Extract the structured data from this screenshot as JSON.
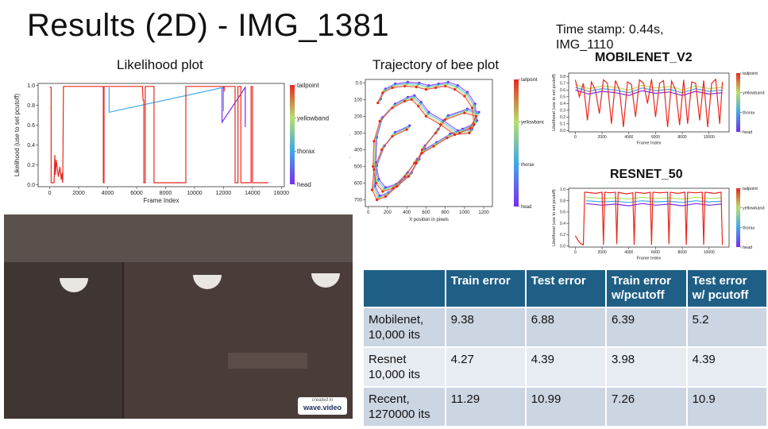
{
  "slide": {
    "title": "Results (2D) - IMG_1381",
    "timestamp_line1": "Time stamp: 0.44s,",
    "timestamp_line2": "IMG_1110",
    "watermark_small": "created in",
    "watermark_brand": "wave.video"
  },
  "colorbar_labels": [
    "tailpoint",
    "yellowband",
    "thorax",
    "head"
  ],
  "colors": {
    "tailpoint": "#e8281f",
    "yellowband": "#b5e06a",
    "thorax": "#3fa8e8",
    "head": "#7a2cf0",
    "table_header": "#1f5f86",
    "table_row_dark": "#ccd5e2",
    "table_row_light": "#e7ebf2"
  },
  "chart_data": [
    {
      "type": "line",
      "title": "Likelihood plot",
      "xlabel": "Frame Index",
      "ylabel": "Likelihood (use to set pcutoff)",
      "xlim": [
        -800,
        16200
      ],
      "ylim": [
        -0.02,
        1.02
      ],
      "xticks": [
        0,
        2000,
        4000,
        6000,
        8000,
        10000,
        12000,
        14000,
        16000
      ],
      "yticks": [
        0.0,
        0.2,
        0.4,
        0.6,
        0.8,
        1.0
      ],
      "series": [
        {
          "name": "tailpoint",
          "x": [
            0,
            100,
            100,
            300,
            350,
            400,
            450,
            600,
            700,
            800,
            850,
            900,
            950,
            3700,
            3700,
            3750,
            3750,
            6400,
            6450,
            6500,
            6500,
            6600,
            6600,
            7200,
            7200,
            7200,
            9400,
            9400,
            12000,
            12050,
            12050,
            12800,
            12800,
            13000,
            13000,
            13200,
            13200,
            13900,
            13900,
            14000,
            14000,
            15100
          ],
          "y": [
            0.98,
            0.98,
            0.02,
            0.02,
            0.3,
            0.1,
            0.25,
            0.08,
            0.18,
            0.05,
            0.12,
            0.02,
            0.99,
            0.99,
            0.02,
            0.02,
            0.99,
            0.99,
            0.85,
            0.85,
            0.02,
            0.02,
            0.99,
            0.99,
            0.02,
            0.02,
            0.02,
            0.99,
            0.99,
            0.94,
            0.99,
            0.99,
            0.02,
            0.02,
            0.99,
            0.99,
            0.02,
            0.02,
            0.99,
            0.99,
            0.02,
            0.02
          ]
        },
        {
          "name": "yellowband",
          "x": [
            0,
            100
          ],
          "y": [
            0.78,
            0.78
          ]
        },
        {
          "name": "thorax",
          "x": [
            4100,
            4100,
            12000,
            12000
          ],
          "y": [
            0.98,
            0.73,
            0.98,
            0.74
          ]
        },
        {
          "name": "head",
          "x": [
            11900,
            11900,
            13500,
            13500
          ],
          "y": [
            0.98,
            0.63,
            0.98,
            0.58
          ]
        }
      ]
    },
    {
      "type": "scatter",
      "title": "Trajectory of bee plot",
      "xlabel": "X position in pixels",
      "ylabel": "Y position in pixels",
      "xlim": [
        -30,
        1290
      ],
      "ylim": [
        740,
        -20
      ],
      "xticks": [
        0,
        200,
        400,
        600,
        800,
        1000,
        1200
      ],
      "yticks": [
        0,
        100,
        200,
        300,
        400,
        500,
        600,
        700
      ],
      "series": [
        {
          "name": "tailpoint",
          "x": [
            100,
            150,
            250,
            380,
            500,
            600,
            700,
            800,
            900,
            1000,
            1080,
            1100,
            1050,
            900,
            750,
            600,
            520,
            450,
            380,
            250,
            120,
            60,
            50,
            80,
            150,
            260,
            380,
            480,
            560,
            680,
            820,
            950,
            1060,
            1120,
            1000,
            800,
            700,
            560,
            500,
            420,
            300,
            180,
            90,
            40,
            60,
            140,
            250,
            400
          ],
          "y": [
            120,
            60,
            30,
            20,
            25,
            40,
            30,
            20,
            40,
            80,
            150,
            250,
            300,
            310,
            250,
            200,
            140,
            100,
            110,
            150,
            230,
            350,
            500,
            600,
            650,
            630,
            560,
            480,
            420,
            380,
            330,
            300,
            270,
            200,
            180,
            220,
            300,
            400,
            480,
            560,
            620,
            680,
            700,
            640,
            520,
            400,
            320,
            280
          ]
        },
        {
          "name": "yellowband",
          "x": [
            110,
            160,
            260,
            390,
            510,
            610,
            710,
            810,
            910,
            1010,
            1090,
            1110,
            1060,
            910,
            760,
            610,
            530,
            460,
            390,
            260,
            130,
            70,
            60,
            90,
            160,
            270,
            390,
            490,
            570,
            690,
            830,
            960,
            1070,
            1130,
            1010,
            810,
            710,
            570,
            510,
            430,
            310,
            190,
            100,
            50,
            70,
            150,
            260,
            410
          ],
          "y": [
            112,
            52,
            22,
            12,
            17,
            32,
            22,
            12,
            32,
            72,
            142,
            242,
            292,
            302,
            242,
            192,
            132,
            92,
            102,
            142,
            222,
            342,
            492,
            592,
            642,
            622,
            552,
            472,
            412,
            372,
            322,
            292,
            262,
            192,
            172,
            212,
            292,
            392,
            472,
            552,
            612,
            672,
            692,
            632,
            512,
            392,
            312,
            272
          ]
        },
        {
          "name": "thorax",
          "x": [
            120,
            170,
            270,
            400,
            520,
            620,
            720,
            820,
            920,
            1020,
            1100,
            1120,
            1070,
            920,
            770,
            620,
            540,
            470,
            400,
            270,
            140,
            80,
            70,
            100,
            170,
            280,
            400,
            500,
            580,
            700,
            840,
            970,
            1080,
            1140,
            1020,
            820,
            720,
            580,
            520,
            440,
            320,
            200,
            110,
            60,
            80,
            160,
            270,
            420
          ],
          "y": [
            104,
            44,
            14,
            4,
            9,
            24,
            14,
            4,
            24,
            64,
            134,
            234,
            284,
            294,
            234,
            184,
            124,
            84,
            94,
            134,
            214,
            334,
            484,
            584,
            634,
            614,
            544,
            464,
            404,
            364,
            314,
            284,
            254,
            184,
            164,
            204,
            284,
            384,
            464,
            544,
            604,
            664,
            684,
            624,
            504,
            384,
            304,
            264
          ]
        },
        {
          "name": "head",
          "x": [
            130,
            180,
            280,
            410,
            530,
            630,
            730,
            830,
            930,
            1030,
            1110,
            1130,
            1080,
            930,
            780,
            630,
            550,
            480,
            410,
            280,
            150,
            90,
            80,
            110,
            180,
            290,
            410,
            510,
            590,
            710,
            850,
            980,
            1090,
            1150,
            1030,
            830,
            730,
            590,
            530,
            450,
            330,
            210,
            120,
            70,
            90,
            170,
            280,
            430
          ],
          "y": [
            96,
            36,
            6,
            -4,
            1,
            16,
            6,
            -4,
            16,
            56,
            126,
            226,
            276,
            286,
            226,
            176,
            116,
            76,
            86,
            126,
            206,
            326,
            476,
            576,
            626,
            606,
            536,
            456,
            396,
            356,
            306,
            276,
            246,
            176,
            156,
            196,
            276,
            376,
            456,
            536,
            596,
            656,
            676,
            616,
            496,
            376,
            296,
            256
          ]
        }
      ]
    },
    {
      "type": "line",
      "title": "MOBILENET_V2",
      "xlabel": "Frame Index",
      "ylabel": "Likelihood (use to set pcutoff)",
      "xlim": [
        -500,
        11500
      ],
      "ylim": [
        -0.02,
        0.85
      ],
      "xticks": [
        0,
        2000,
        4000,
        6000,
        8000,
        10000
      ],
      "yticks": [
        0.0,
        0.1,
        0.2,
        0.3,
        0.4,
        0.5,
        0.6,
        0.7,
        0.8
      ],
      "series": [
        {
          "name": "tailpoint",
          "x": [
            0,
            300,
            600,
            900,
            1200,
            1500,
            1800,
            2100,
            2400,
            2700,
            3000,
            3300,
            3600,
            3900,
            4200,
            4500,
            4800,
            5100,
            5400,
            5700,
            6000,
            6300,
            6600,
            6900,
            7200,
            7500,
            7800,
            8100,
            8400,
            8700,
            9000,
            9300,
            9600,
            9900,
            10200,
            10500,
            10800,
            11000
          ],
          "y": [
            0.75,
            0.5,
            0.7,
            0.15,
            0.72,
            0.6,
            0.25,
            0.75,
            0.7,
            0.1,
            0.74,
            0.6,
            0.05,
            0.72,
            0.68,
            0.2,
            0.75,
            0.7,
            0.4,
            0.76,
            0.2,
            0.7,
            0.74,
            0.05,
            0.73,
            0.6,
            0.08,
            0.75,
            0.1,
            0.72,
            0.7,
            0.15,
            0.74,
            0.05,
            0.7,
            0.76,
            0.1,
            0.72
          ]
        },
        {
          "name": "yellowband",
          "x": [
            0,
            1000,
            2000,
            3000,
            4000,
            5000,
            6000,
            7000,
            8000,
            9000,
            10000,
            11000
          ],
          "y": [
            0.68,
            0.62,
            0.66,
            0.64,
            0.6,
            0.67,
            0.63,
            0.65,
            0.6,
            0.66,
            0.62,
            0.64
          ]
        },
        {
          "name": "thorax",
          "x": [
            0,
            1000,
            2000,
            3000,
            4000,
            5000,
            6000,
            7000,
            8000,
            9000,
            10000,
            11000
          ],
          "y": [
            0.64,
            0.58,
            0.62,
            0.6,
            0.56,
            0.63,
            0.59,
            0.61,
            0.56,
            0.62,
            0.58,
            0.6
          ]
        },
        {
          "name": "head",
          "x": [
            0,
            1000,
            2000,
            3000,
            4000,
            5000,
            6000,
            7000,
            8000,
            9000,
            10000,
            11000
          ],
          "y": [
            0.6,
            0.54,
            0.58,
            0.56,
            0.52,
            0.59,
            0.55,
            0.57,
            0.52,
            0.58,
            0.54,
            0.56
          ]
        }
      ]
    },
    {
      "type": "line",
      "title": "RESNET_50",
      "xlabel": "Frame Index",
      "ylabel": "Likelihood (use to set pcutoff)",
      "xlim": [
        -500,
        11500
      ],
      "ylim": [
        -0.02,
        1.02
      ],
      "xticks": [
        0,
        2000,
        4000,
        6000,
        8000,
        10000
      ],
      "yticks": [
        0.0,
        0.2,
        0.4,
        0.6,
        0.8,
        1.0
      ],
      "series": [
        {
          "name": "tailpoint",
          "x": [
            0,
            200,
            400,
            600,
            700,
            800,
            1500,
            2000,
            2100,
            2200,
            2600,
            3000,
            3100,
            3200,
            3800,
            4300,
            4400,
            4500,
            5200,
            5600,
            5700,
            5800,
            6300,
            6900,
            7000,
            7100,
            7700,
            8200,
            8300,
            8400,
            9000,
            9500,
            9600,
            9700,
            10400,
            10900,
            11000
          ],
          "y": [
            0.18,
            0.1,
            0.04,
            0.02,
            0.95,
            0.95,
            0.93,
            0.95,
            0.02,
            0.95,
            0.94,
            0.95,
            0.03,
            0.95,
            0.92,
            0.94,
            0.02,
            0.95,
            0.93,
            0.95,
            0.02,
            0.95,
            0.94,
            0.95,
            0.03,
            0.95,
            0.93,
            0.95,
            0.02,
            0.95,
            0.94,
            0.95,
            0.02,
            0.95,
            0.93,
            0.95,
            0.02
          ]
        },
        {
          "name": "yellowband",
          "x": [
            800,
            2000,
            3000,
            4000,
            5000,
            6000,
            7000,
            8000,
            9000,
            10000,
            10900
          ],
          "y": [
            0.86,
            0.84,
            0.85,
            0.83,
            0.86,
            0.84,
            0.85,
            0.83,
            0.86,
            0.84,
            0.85
          ]
        },
        {
          "name": "thorax",
          "x": [
            800,
            2000,
            3000,
            4000,
            5000,
            6000,
            7000,
            8000,
            9000,
            10000,
            10900
          ],
          "y": [
            0.8,
            0.78,
            0.79,
            0.77,
            0.8,
            0.78,
            0.79,
            0.77,
            0.8,
            0.78,
            0.79
          ]
        },
        {
          "name": "head",
          "x": [
            800,
            2000,
            3000,
            4000,
            5000,
            6000,
            7000,
            8000,
            9000,
            10000,
            10900
          ],
          "y": [
            0.75,
            0.72,
            0.74,
            0.71,
            0.75,
            0.72,
            0.74,
            0.71,
            0.75,
            0.72,
            0.74
          ]
        }
      ]
    },
    {
      "type": "table",
      "columns": [
        "",
        "Train error",
        "Test error",
        "Train error w/pcutoff",
        "Test error w/ pcutoff"
      ],
      "rows": [
        {
          "label": "Mobilenet, 10,000 its",
          "values": [
            "9.38",
            "6.88",
            "6.39",
            "5.2"
          ]
        },
        {
          "label": "Resnet 10,000 its",
          "values": [
            "4.27",
            "4.39",
            "3.98",
            "4.39"
          ]
        },
        {
          "label": "Recent, 1270000 its",
          "values": [
            "11.29",
            "10.99",
            "7.26",
            "10.9"
          ]
        }
      ]
    }
  ]
}
